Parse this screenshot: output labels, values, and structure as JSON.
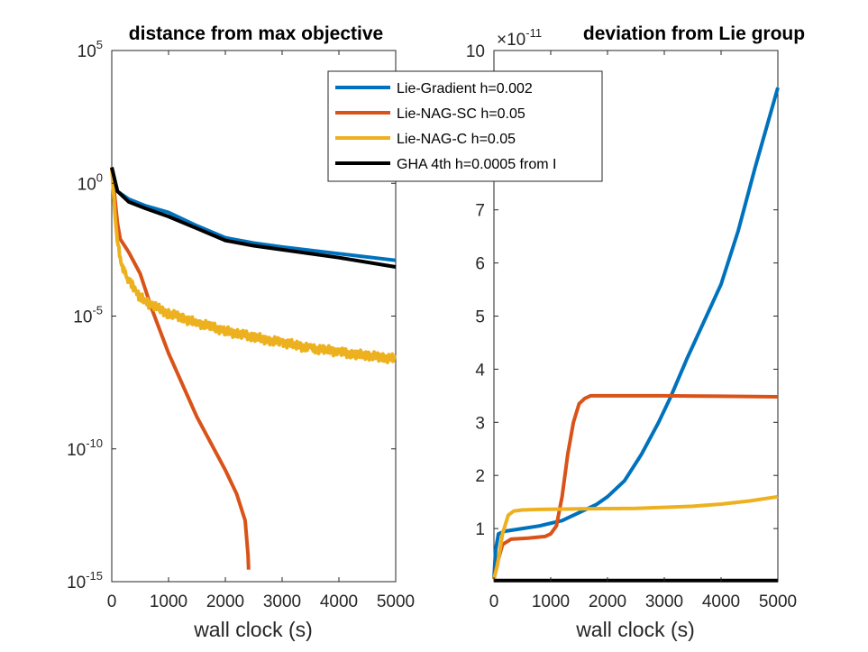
{
  "chart_data": [
    {
      "type": "line",
      "title": "distance from max objective",
      "xlabel": "wall clock (s)",
      "ylabel": "",
      "yscale": "log",
      "xlim": [
        0,
        5000
      ],
      "ylim_exp": [
        -15,
        5
      ],
      "x_ticks": [
        "0",
        "1000",
        "2000",
        "3000",
        "4000",
        "5000"
      ],
      "y_tick_base": "10",
      "y_tick_exps": [
        "5",
        "0",
        "-5",
        "-10",
        "-15"
      ],
      "series": [
        {
          "name": "Lie-Gradient h=0.002",
          "color": "#0072bd",
          "x": [
            0,
            100,
            300,
            600,
            1000,
            1500,
            2000,
            2500,
            3000,
            4000,
            5000
          ],
          "log10y": [
            0.6,
            -0.3,
            -0.6,
            -0.85,
            -1.1,
            -1.6,
            -2.05,
            -2.25,
            -2.4,
            -2.65,
            -2.9
          ]
        },
        {
          "name": "Lie-NAG-SC h=0.05",
          "color": "#d95319",
          "x": [
            0,
            100,
            150,
            300,
            500,
            700,
            1000,
            1500,
            2000,
            2200,
            2350,
            2400,
            2410
          ],
          "log10y": [
            0.6,
            -1.5,
            -2.1,
            -2.6,
            -3.4,
            -4.7,
            -6.4,
            -8.8,
            -10.8,
            -11.7,
            -12.7,
            -14.0,
            -14.55
          ]
        },
        {
          "name": "Lie-NAG-C h=0.05",
          "color": "#edb120",
          "x": [
            0,
            50,
            100,
            200,
            300,
            500,
            700,
            1000,
            1500,
            2000,
            2500,
            3000,
            3500,
            4000,
            4500,
            5000
          ],
          "log10y": [
            0.6,
            -1.0,
            -2.2,
            -3.3,
            -3.6,
            -4.3,
            -4.6,
            -4.9,
            -5.25,
            -5.55,
            -5.8,
            -6.0,
            -6.2,
            -6.35,
            -6.5,
            -6.6
          ]
        },
        {
          "name": "GHA 4th h=0.0005 from I",
          "color": "#000000",
          "x": [
            0,
            100,
            300,
            600,
            1000,
            1500,
            2000,
            2500,
            3000,
            4000,
            5000
          ],
          "log10y": [
            0.6,
            -0.3,
            -0.7,
            -0.95,
            -1.25,
            -1.7,
            -2.15,
            -2.35,
            -2.5,
            -2.8,
            -3.15
          ]
        }
      ]
    },
    {
      "type": "line",
      "title": "deviation from Lie group",
      "xlabel": "wall clock (s)",
      "ylabel": "",
      "y_multiplier_base": "10",
      "y_multiplier_exp": "-11",
      "xlim": [
        0,
        5000
      ],
      "ylim": [
        0,
        10
      ],
      "x_ticks": [
        "0",
        "1000",
        "2000",
        "3000",
        "4000",
        "5000"
      ],
      "y_ticks": [
        "1",
        "2",
        "3",
        "4",
        "5",
        "6",
        "7",
        "10"
      ],
      "series": [
        {
          "name": "Lie-Gradient h=0.002",
          "color": "#0072bd",
          "x": [
            0,
            30,
            80,
            200,
            500,
            800,
            1000,
            1200,
            1500,
            1800,
            2000,
            2300,
            2600,
            2900,
            3100,
            3400,
            3700,
            4000,
            4300,
            4600,
            5000
          ],
          "y": [
            0.05,
            0.6,
            0.9,
            0.95,
            1.0,
            1.05,
            1.1,
            1.15,
            1.3,
            1.45,
            1.6,
            1.9,
            2.4,
            3.0,
            3.45,
            4.2,
            4.9,
            5.6,
            6.6,
            7.8,
            9.3
          ]
        },
        {
          "name": "Lie-NAG-SC h=0.05",
          "color": "#d95319",
          "x": [
            0,
            60,
            150,
            300,
            600,
            900,
            1000,
            1100,
            1200,
            1300,
            1400,
            1500,
            1600,
            1700,
            1800,
            2500,
            3000,
            4000,
            5000
          ],
          "y": [
            0.05,
            0.35,
            0.7,
            0.8,
            0.82,
            0.85,
            0.9,
            1.05,
            1.6,
            2.4,
            3.0,
            3.35,
            3.45,
            3.5,
            3.5,
            3.5,
            3.5,
            3.49,
            3.48
          ]
        },
        {
          "name": "Lie-NAG-C h=0.05",
          "color": "#edb120",
          "x": [
            0,
            60,
            150,
            250,
            350,
            500,
            800,
            1500,
            2500,
            3500,
            4000,
            4500,
            5000
          ],
          "y": [
            0.05,
            0.3,
            0.9,
            1.25,
            1.33,
            1.35,
            1.36,
            1.37,
            1.38,
            1.42,
            1.46,
            1.52,
            1.6
          ]
        },
        {
          "name": "GHA 4th h=0.0005 from I",
          "color": "#000000",
          "x": [
            0,
            5000
          ],
          "y": [
            0.02,
            0.02
          ]
        }
      ]
    }
  ],
  "legend": {
    "placement": "top-center",
    "entries": [
      {
        "label": "Lie-Gradient h=0.002",
        "color": "#0072bd"
      },
      {
        "label": "Lie-NAG-SC h=0.05",
        "color": "#d95319"
      },
      {
        "label": "Lie-NAG-C h=0.05",
        "color": "#edb120"
      },
      {
        "label": "GHA 4th h=0.0005 from I",
        "color": "#000000"
      }
    ]
  }
}
